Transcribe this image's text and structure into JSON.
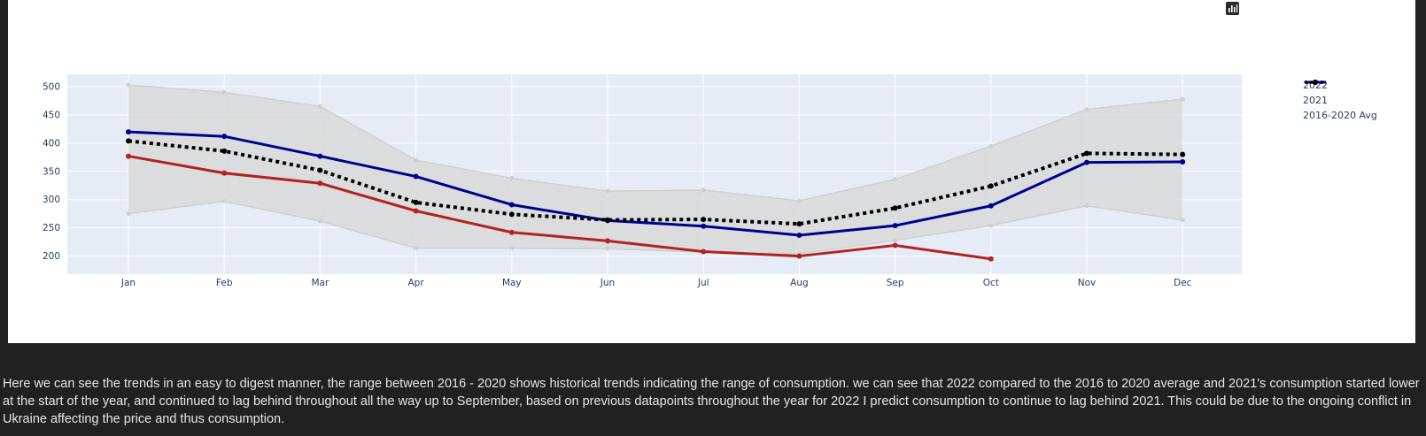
{
  "modebar": {
    "icons": [
      "camera-icon",
      "zoom-icon",
      "pan-icon",
      "box-select-icon",
      "lasso-icon",
      "zoom-in-icon",
      "zoom-out-icon",
      "autoscale-icon",
      "reset-axes-icon",
      "plotly-logo-icon"
    ]
  },
  "chart_data": {
    "type": "line",
    "title": "",
    "xlabel": "",
    "ylabel": "",
    "categories": [
      "Jan",
      "Feb",
      "Mar",
      "Apr",
      "May",
      "Jun",
      "Jul",
      "Aug",
      "Sep",
      "Oct",
      "Nov",
      "Dec"
    ],
    "ylim": [
      168,
      522
    ],
    "yticks": [
      200,
      250,
      300,
      350,
      400,
      450,
      500
    ],
    "grid": true,
    "legend_position": "right",
    "range_band": {
      "upper": [
        503,
        490,
        465,
        370,
        338,
        315,
        317,
        298,
        336,
        395,
        460,
        478
      ],
      "lower": [
        275,
        297,
        262,
        214,
        214,
        213,
        207,
        204,
        228,
        254,
        289,
        264
      ],
      "color": "#d9d9d9",
      "line_color": "#cfcfcf"
    },
    "series": [
      {
        "name": "2022",
        "color": "#b22222",
        "dash": "solid",
        "values": [
          377,
          347,
          329,
          280,
          242,
          227,
          208,
          200,
          219,
          195,
          null,
          null
        ]
      },
      {
        "name": "2021",
        "color": "#00008b",
        "dash": "solid",
        "values": [
          420,
          412,
          377,
          341,
          291,
          263,
          253,
          237,
          254,
          289,
          366,
          367
        ]
      },
      {
        "name": "2016-2020 Avg",
        "color": "#000000",
        "dash": "dot",
        "values": [
          404,
          386,
          352,
          295,
          274,
          264,
          265,
          257,
          285,
          324,
          382,
          380
        ]
      }
    ]
  },
  "caption": "Here we can see the trends in an easy to digest manner, the range between 2016 - 2020 shows historical trends indicating the range of consumption. we can see that 2022 compared to the 2016 to 2020 average and 2021's consumption started lower at the start of the year, and continued to lag behind throughout all the way up to September, based on previous datapoints throughout the year for 2022 I predict consumption to continue to lag behind 2021. This could be due to the ongoing conflict in Ukraine affecting the price and thus consumption."
}
